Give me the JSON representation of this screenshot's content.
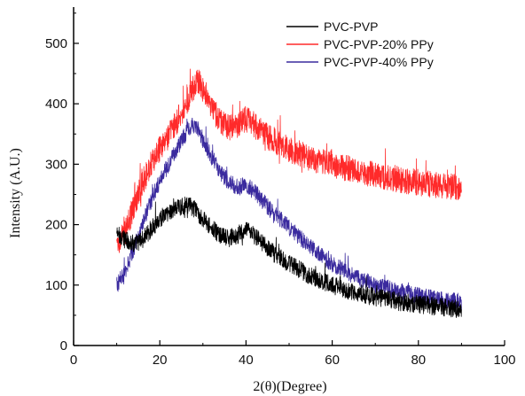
{
  "chart_data": {
    "type": "line",
    "xlabel": "2(θ)(Degree)",
    "ylabel": "Intensity (A.U.)",
    "xlim": [
      0,
      100
    ],
    "ylim": [
      0,
      560
    ],
    "x_ticks": [
      0,
      20,
      40,
      60,
      80,
      100
    ],
    "y_ticks": [
      0,
      100,
      200,
      300,
      400,
      500
    ],
    "legend_position": "top-right",
    "grid": false,
    "series": [
      {
        "name": "PVC-PVP",
        "color": "#000000",
        "noise": 15,
        "points": [
          [
            10,
            185
          ],
          [
            12,
            175
          ],
          [
            14,
            168
          ],
          [
            16,
            175
          ],
          [
            18,
            193
          ],
          [
            20,
            210
          ],
          [
            22,
            220
          ],
          [
            24,
            228
          ],
          [
            26,
            232
          ],
          [
            27,
            231
          ],
          [
            28,
            226
          ],
          [
            30,
            210
          ],
          [
            32,
            195
          ],
          [
            34,
            182
          ],
          [
            36,
            177
          ],
          [
            38,
            182
          ],
          [
            40,
            190
          ],
          [
            42,
            182
          ],
          [
            44,
            168
          ],
          [
            46,
            155
          ],
          [
            48,
            145
          ],
          [
            50,
            135
          ],
          [
            55,
            115
          ],
          [
            60,
            100
          ],
          [
            65,
            88
          ],
          [
            70,
            80
          ],
          [
            75,
            73
          ],
          [
            80,
            68
          ],
          [
            85,
            64
          ],
          [
            90,
            60
          ]
        ]
      },
      {
        "name": "PVC-PVP-20% PPy",
        "color": "#ff2a2a",
        "noise": 22,
        "points": [
          [
            10,
            165
          ],
          [
            12,
            188
          ],
          [
            14,
            228
          ],
          [
            16,
            268
          ],
          [
            18,
            300
          ],
          [
            20,
            325
          ],
          [
            22,
            345
          ],
          [
            24,
            372
          ],
          [
            26,
            400
          ],
          [
            28,
            428
          ],
          [
            29,
            437
          ],
          [
            30,
            425
          ],
          [
            32,
            395
          ],
          [
            34,
            370
          ],
          [
            36,
            360
          ],
          [
            38,
            365
          ],
          [
            40,
            375
          ],
          [
            42,
            365
          ],
          [
            44,
            350
          ],
          [
            46,
            340
          ],
          [
            50,
            325
          ],
          [
            55,
            310
          ],
          [
            60,
            300
          ],
          [
            65,
            290
          ],
          [
            70,
            283
          ],
          [
            75,
            275
          ],
          [
            80,
            270
          ],
          [
            85,
            265
          ],
          [
            90,
            262
          ]
        ]
      },
      {
        "name": "PVC-PVP-40% PPy",
        "color": "#3a2a9e",
        "noise": 14,
        "points": [
          [
            10,
            100
          ],
          [
            12,
            122
          ],
          [
            14,
            162
          ],
          [
            16,
            200
          ],
          [
            18,
            240
          ],
          [
            20,
            272
          ],
          [
            22,
            300
          ],
          [
            24,
            325
          ],
          [
            26,
            350
          ],
          [
            27,
            362
          ],
          [
            28,
            365
          ],
          [
            29,
            355
          ],
          [
            30,
            340
          ],
          [
            32,
            312
          ],
          [
            34,
            288
          ],
          [
            36,
            270
          ],
          [
            38,
            262
          ],
          [
            40,
            265
          ],
          [
            42,
            255
          ],
          [
            44,
            238
          ],
          [
            46,
            222
          ],
          [
            50,
            195
          ],
          [
            55,
            162
          ],
          [
            60,
            135
          ],
          [
            65,
            115
          ],
          [
            70,
            100
          ],
          [
            75,
            90
          ],
          [
            80,
            82
          ],
          [
            85,
            76
          ],
          [
            90,
            72
          ]
        ]
      }
    ]
  }
}
